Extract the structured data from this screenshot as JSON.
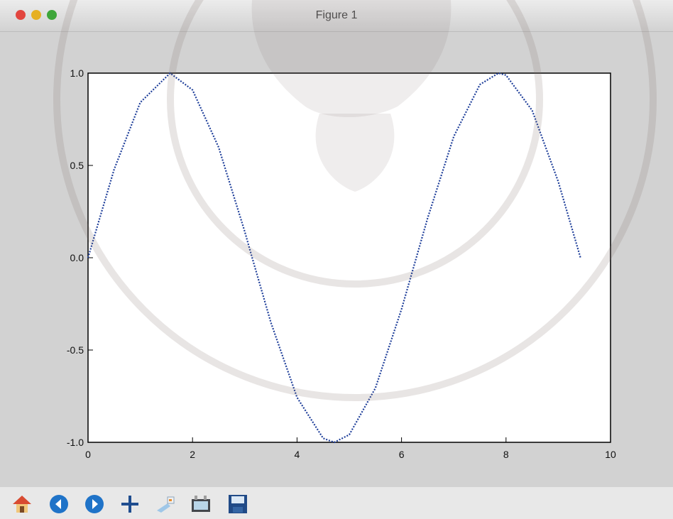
{
  "window": {
    "title": "Figure 1"
  },
  "toolbar": {
    "buttons": [
      {
        "icon": "home-icon"
      },
      {
        "icon": "back-icon"
      },
      {
        "icon": "forward-icon"
      },
      {
        "icon": "pan-icon"
      },
      {
        "icon": "zoom-icon"
      },
      {
        "icon": "configure-subplots-icon"
      },
      {
        "icon": "save-icon"
      }
    ]
  },
  "colors": {
    "line": "#1f3f9a",
    "background": "#d2d2d2",
    "axes_bg": "#ffffff"
  },
  "chart_data": {
    "type": "line",
    "title": "",
    "xlabel": "",
    "ylabel": "",
    "xlim": [
      0,
      10
    ],
    "ylim": [
      -1.0,
      1.0
    ],
    "xticks": [
      "0",
      "2",
      "4",
      "6",
      "8",
      "10"
    ],
    "yticks": [
      "-1.0",
      "-0.5",
      "0.0",
      "0.5",
      "1.0"
    ],
    "grid": false,
    "series": [
      {
        "style": "dotted",
        "function": "sin(x)",
        "x": [
          0.0,
          0.5,
          1.0,
          1.5708,
          2.0,
          2.5,
          3.0,
          3.1416,
          3.5,
          4.0,
          4.5,
          4.7124,
          5.0,
          5.5,
          6.0,
          6.2832,
          6.5,
          7.0,
          7.5,
          7.854,
          8.0,
          8.5,
          9.0,
          9.4248
        ],
        "y": [
          0.0,
          0.479,
          0.841,
          1.0,
          0.909,
          0.598,
          0.141,
          0.0,
          -0.351,
          -0.757,
          -0.978,
          -1.0,
          -0.959,
          -0.706,
          -0.279,
          0.0,
          0.215,
          0.657,
          0.938,
          1.0,
          0.989,
          0.798,
          0.412,
          0.0
        ]
      }
    ]
  }
}
